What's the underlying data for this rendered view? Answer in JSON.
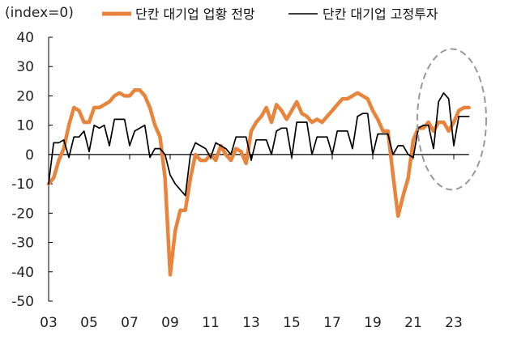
{
  "chart_data": {
    "type": "line",
    "ylabel_note": "(index=0)",
    "ylim": [
      -50,
      40
    ],
    "yticks": [
      40,
      30,
      20,
      10,
      0,
      -10,
      -20,
      -30,
      -40,
      -50
    ],
    "xlim": [
      2003,
      2024.2
    ],
    "xticks": [
      {
        "label": "03",
        "x": 2003
      },
      {
        "label": "05",
        "x": 2005
      },
      {
        "label": "07",
        "x": 2007
      },
      {
        "label": "09",
        "x": 2009
      },
      {
        "label": "11",
        "x": 2011
      },
      {
        "label": "13",
        "x": 2013
      },
      {
        "label": "15",
        "x": 2015
      },
      {
        "label": "17",
        "x": 2017
      },
      {
        "label": "19",
        "x": 2019
      },
      {
        "label": "21",
        "x": 2021
      },
      {
        "label": "23",
        "x": 2023
      }
    ],
    "annotation": {
      "type": "dashed-ellipse",
      "cx": 2022.9,
      "cy": 12,
      "rx": 1.7,
      "ry": 24,
      "color": "#999999"
    },
    "series": [
      {
        "name": "단칸 대기업 업황 전망",
        "color": "#E8843C",
        "x": [
          2003.0,
          2003.25,
          2003.5,
          2003.75,
          2004.0,
          2004.25,
          2004.5,
          2004.75,
          2005.0,
          2005.25,
          2005.5,
          2005.75,
          2006.0,
          2006.25,
          2006.5,
          2006.75,
          2007.0,
          2007.25,
          2007.5,
          2007.75,
          2008.0,
          2008.25,
          2008.5,
          2008.75,
          2009.0,
          2009.25,
          2009.5,
          2009.75,
          2010.0,
          2010.25,
          2010.5,
          2010.75,
          2011.0,
          2011.25,
          2011.5,
          2011.75,
          2012.0,
          2012.25,
          2012.5,
          2012.75,
          2013.0,
          2013.25,
          2013.5,
          2013.75,
          2014.0,
          2014.25,
          2014.5,
          2014.75,
          2015.0,
          2015.25,
          2015.5,
          2015.75,
          2016.0,
          2016.25,
          2016.5,
          2016.75,
          2017.0,
          2017.25,
          2017.5,
          2017.75,
          2018.0,
          2018.25,
          2018.5,
          2018.75,
          2019.0,
          2019.25,
          2019.5,
          2019.75,
          2020.0,
          2020.25,
          2020.5,
          2020.75,
          2021.0,
          2021.25,
          2021.5,
          2021.75,
          2022.0,
          2022.25,
          2022.5,
          2022.75,
          2023.0,
          2023.25,
          2023.5,
          2023.75
        ],
        "values": [
          -10,
          -8,
          -2,
          2,
          10,
          16,
          15,
          11,
          11,
          16,
          16,
          17,
          18,
          20,
          21,
          20,
          20,
          22,
          22,
          20,
          16,
          10,
          6,
          -8,
          -41,
          -26,
          -19,
          -19,
          -8,
          0,
          -2,
          -2,
          0,
          -2,
          3,
          0,
          -2,
          2,
          1,
          -3,
          8,
          11,
          13,
          16,
          11,
          17,
          15,
          12,
          15,
          18,
          14,
          13,
          11,
          12,
          11,
          13,
          15,
          17,
          19,
          19,
          20,
          21,
          20,
          19,
          15,
          12,
          8,
          8,
          -7,
          -21,
          -14,
          -8,
          5,
          9,
          9,
          11,
          8,
          11,
          11,
          8,
          11,
          15,
          16,
          16
        ]
      },
      {
        "name": "단칸 대기업 고정투자",
        "color": "#000000",
        "x": [
          2003.0,
          2003.25,
          2003.5,
          2003.75,
          2004.0,
          2004.25,
          2004.5,
          2004.75,
          2005.0,
          2005.25,
          2005.5,
          2005.75,
          2006.0,
          2006.25,
          2006.5,
          2006.75,
          2007.0,
          2007.25,
          2007.5,
          2007.75,
          2008.0,
          2008.25,
          2008.5,
          2008.75,
          2009.0,
          2009.25,
          2009.5,
          2009.75,
          2010.0,
          2010.25,
          2010.5,
          2010.75,
          2011.0,
          2011.25,
          2011.5,
          2011.75,
          2012.0,
          2012.25,
          2012.5,
          2012.75,
          2013.0,
          2013.25,
          2013.5,
          2013.75,
          2014.0,
          2014.25,
          2014.5,
          2014.75,
          2015.0,
          2015.25,
          2015.5,
          2015.75,
          2016.0,
          2016.25,
          2016.5,
          2016.75,
          2017.0,
          2017.25,
          2017.5,
          2017.75,
          2018.0,
          2018.25,
          2018.5,
          2018.75,
          2019.0,
          2019.25,
          2019.5,
          2019.75,
          2020.0,
          2020.25,
          2020.5,
          2020.75,
          2021.0,
          2021.25,
          2021.5,
          2021.75,
          2022.0,
          2022.25,
          2022.5,
          2022.75,
          2023.0,
          2023.25,
          2023.5,
          2023.75
        ],
        "values": [
          -10,
          4,
          4,
          5,
          -1,
          6,
          6,
          8,
          1,
          10,
          9,
          10,
          3,
          12,
          12,
          12,
          3,
          8,
          9,
          10,
          -1,
          2,
          2,
          0,
          -7,
          -10,
          -12,
          -14,
          0,
          4,
          3,
          2,
          -1,
          4,
          3,
          2,
          0,
          6,
          6,
          6,
          -2,
          5,
          5,
          5,
          0,
          8,
          9,
          9,
          -1,
          11,
          11,
          11,
          0,
          6,
          6,
          6,
          0,
          8,
          8,
          8,
          2,
          13,
          14,
          14,
          0,
          7,
          7,
          7,
          0,
          3,
          3,
          0,
          -1,
          9,
          10,
          10,
          2,
          18,
          21,
          19,
          3,
          13,
          13,
          13
        ]
      }
    ]
  }
}
